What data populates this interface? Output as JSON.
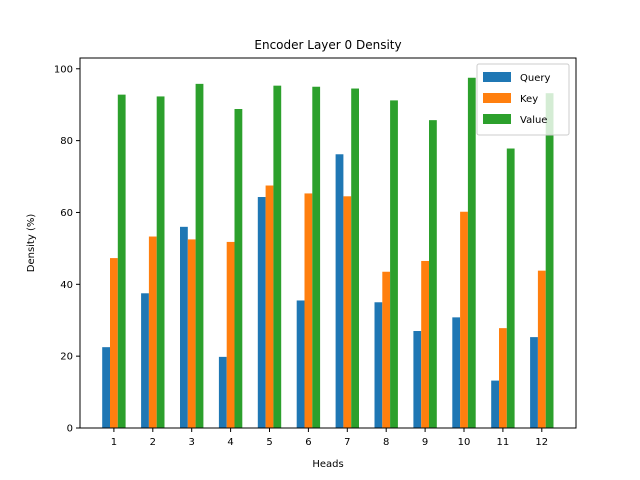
{
  "chart_data": {
    "type": "bar",
    "title": "Encoder Layer 0 Density",
    "xlabel": "Heads",
    "ylabel": "Density (%)",
    "categories": [
      "1",
      "2",
      "3",
      "4",
      "5",
      "6",
      "7",
      "8",
      "9",
      "10",
      "11",
      "12"
    ],
    "ylim": [
      0,
      103
    ],
    "yticks": [
      0,
      20,
      40,
      60,
      80,
      100
    ],
    "grid": false,
    "legend_position": "top-right",
    "series": [
      {
        "name": "Query",
        "color": "#1f77b4",
        "values": [
          22.5,
          37.5,
          56.0,
          19.8,
          64.3,
          35.5,
          76.2,
          35.0,
          27.0,
          30.8,
          13.2,
          25.3
        ]
      },
      {
        "name": "Key",
        "color": "#ff7f0e",
        "values": [
          47.3,
          53.3,
          52.5,
          51.8,
          67.5,
          65.3,
          64.5,
          43.5,
          46.5,
          60.2,
          27.8,
          43.8
        ]
      },
      {
        "name": "Value",
        "color": "#2ca02c",
        "values": [
          92.8,
          92.3,
          95.8,
          88.8,
          95.3,
          95.0,
          94.5,
          91.2,
          85.7,
          97.5,
          77.8,
          93.2
        ]
      }
    ]
  }
}
